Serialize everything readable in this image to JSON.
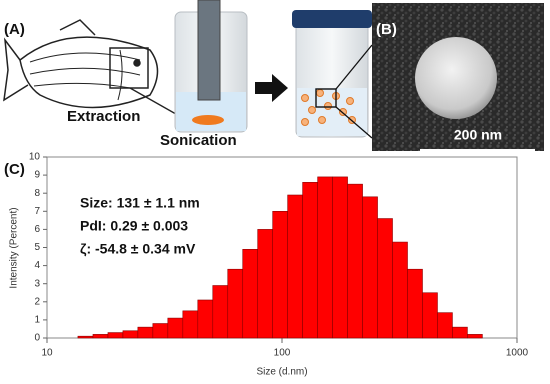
{
  "panel_labels": [
    "(A)",
    "(B)",
    "(C)"
  ],
  "diagram": {
    "step_labels": [
      "Extraction",
      "Sonication"
    ]
  },
  "tem": {
    "scale_bar": "200 nm"
  },
  "chart_data": {
    "type": "histogram",
    "xscale": "log",
    "xlabel": "Size (d.nm)",
    "ylabel": "Intensity (Percent)",
    "annotations": [
      "Size: 131 ± 1.1 nm",
      "PdI: 0.29 ± 0.003",
      "ζ: -54.8 ± 0.34 mV"
    ],
    "bins": [
      13.54,
      15.69,
      18.17,
      21.04,
      24.36,
      28.21,
      32.67,
      37.84,
      43.82,
      50.75,
      58.77,
      68.06,
      78.82,
      91.28,
      105.7,
      122.4,
      141.8,
      164.2,
      190.1,
      220.2,
      255.0,
      295.3,
      342.0,
      396.1,
      458.7,
      531.2,
      615.1,
      712.4
    ],
    "values": [
      0.1,
      0.2,
      0.3,
      0.4,
      0.6,
      0.8,
      1.1,
      1.5,
      2.1,
      2.9,
      3.8,
      4.9,
      6.0,
      7.0,
      7.9,
      8.6,
      8.9,
      8.9,
      8.5,
      7.8,
      6.6,
      5.3,
      3.8,
      2.5,
      1.4,
      0.6,
      0.2
    ],
    "color": "#ff0000",
    "xlim": [
      10,
      1000
    ],
    "xticks": [
      10,
      100,
      1000
    ],
    "ylim": [
      0,
      10
    ],
    "yticks": [
      0,
      1,
      2,
      3,
      4,
      5,
      6,
      7,
      8,
      9,
      10
    ]
  }
}
